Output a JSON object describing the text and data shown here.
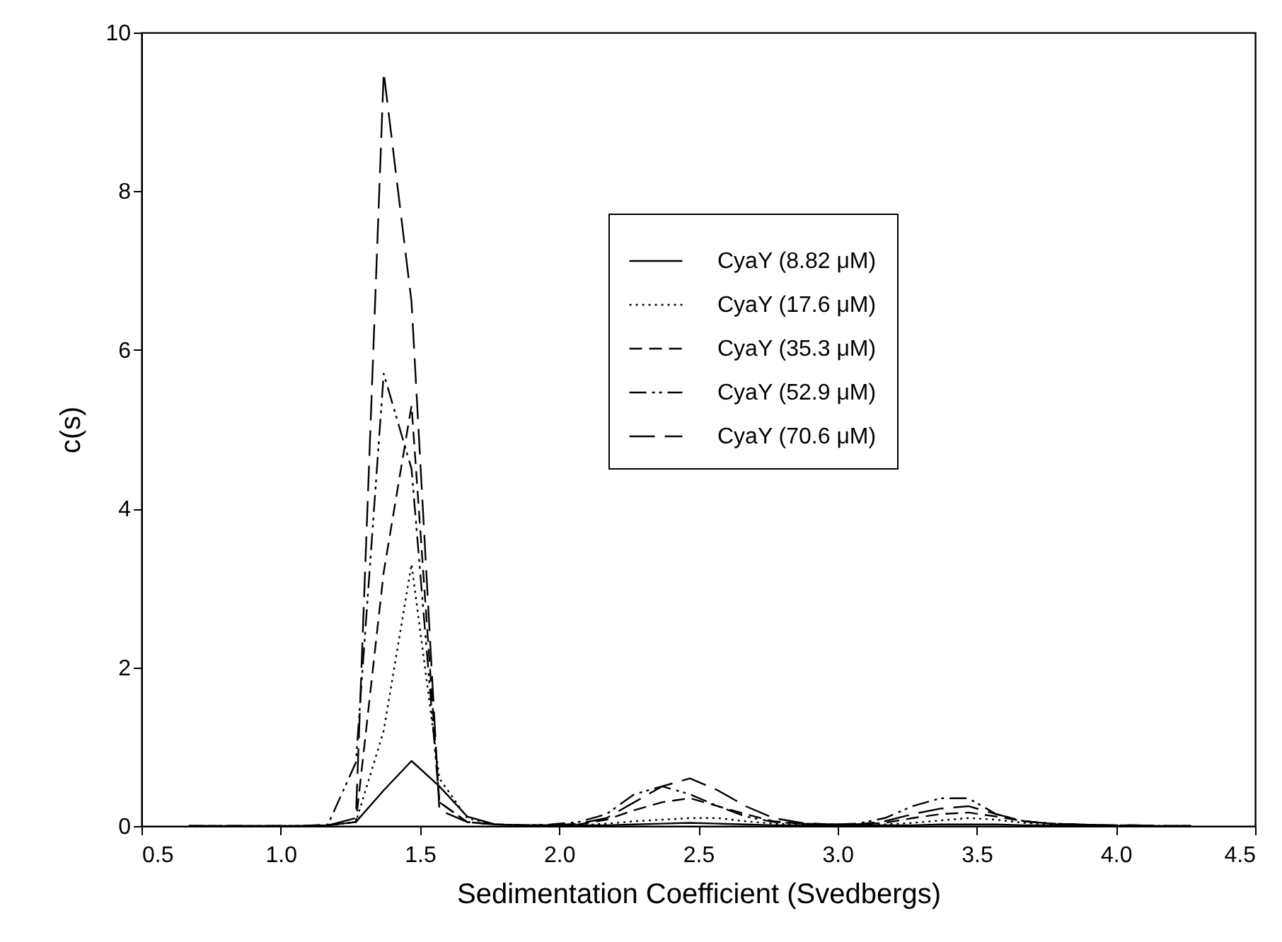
{
  "chart_data": {
    "type": "line",
    "xlabel": "Sedimentation Coefficient (Svedbergs)",
    "ylabel": "c(s)",
    "xlim": [
      0.5,
      4.5
    ],
    "xticks": [
      {
        "value": 0.5,
        "label": "0.5"
      },
      {
        "value": 1,
        "label": "1.0"
      },
      {
        "value": 1.5,
        "label": "1.5"
      },
      {
        "value": 2,
        "label": "2.0"
      },
      {
        "value": 2.5,
        "label": "2.5"
      },
      {
        "value": 3,
        "label": "3.0"
      },
      {
        "value": 3.5,
        "label": "3.5"
      },
      {
        "value": 4,
        "label": "4.0"
      },
      {
        "value": 4.5,
        "label": "4.5"
      }
    ],
    "ylim": [
      0,
      10
    ],
    "yticks": [
      0,
      2,
      4,
      6,
      8,
      10
    ],
    "legend": "top right",
    "x": [
      0.67,
      0.77,
      0.87,
      0.97,
      1.07,
      1.17,
      1.27,
      1.37,
      1.47,
      1.57,
      1.67,
      1.77,
      1.87,
      1.97,
      2.07,
      2.17,
      2.27,
      2.37,
      2.47,
      2.57,
      2.67,
      2.77,
      2.87,
      2.97,
      3.07,
      3.17,
      3.27,
      3.37,
      3.47,
      3.57,
      3.67,
      3.77,
      3.87,
      3.97,
      4.07,
      4.17,
      4.27
    ],
    "series": [
      {
        "name": "CyaY (8.82 μM)",
        "color": "#000000",
        "line_style": "solid",
        "values": [
          0,
          0,
          0,
          0,
          0,
          0.01,
          0.05,
          0.45,
          0.82,
          0.5,
          0.12,
          0.02,
          0.01,
          0.01,
          0.01,
          0.01,
          0.02,
          0.03,
          0.04,
          0.03,
          0.02,
          0.01,
          0.01,
          0.01,
          0.01,
          0.01,
          0.01,
          0.02,
          0.02,
          0.02,
          0.01,
          0.01,
          0.01,
          0,
          0,
          0,
          0
        ]
      },
      {
        "name": "CyaY (17.6 μM)",
        "color": "#000000",
        "line_style": "dotted",
        "values": [
          0,
          0,
          0,
          0,
          0,
          0.01,
          0.05,
          1.2,
          3.3,
          0.6,
          0.1,
          0.02,
          0.01,
          0.01,
          0.01,
          0.03,
          0.06,
          0.08,
          0.1,
          0.1,
          0.06,
          0.03,
          0.02,
          0.01,
          0.01,
          0.02,
          0.04,
          0.07,
          0.1,
          0.08,
          0.04,
          0.02,
          0.01,
          0.01,
          0,
          0,
          0
        ]
      },
      {
        "name": "CyaY (35.3 μM)",
        "color": "#000000",
        "line_style": "dashed",
        "values": [
          0,
          0,
          0,
          0,
          0,
          0.01,
          0.05,
          3.2,
          5.3,
          0.3,
          0.05,
          0.02,
          0.01,
          0.01,
          0.02,
          0.08,
          0.2,
          0.3,
          0.35,
          0.25,
          0.15,
          0.06,
          0.03,
          0.02,
          0.02,
          0.04,
          0.1,
          0.15,
          0.17,
          0.12,
          0.06,
          0.03,
          0.02,
          0.01,
          0.01,
          0,
          0
        ]
      },
      {
        "name": "CyaY (52.9 μM)",
        "color": "#000000",
        "line_style": "dashdot",
        "values": [
          0,
          0,
          0,
          0,
          0,
          0.02,
          0.8,
          5.7,
          4.5,
          0.3,
          0.05,
          0.02,
          0.01,
          0.02,
          0.05,
          0.15,
          0.4,
          0.5,
          0.4,
          0.25,
          0.12,
          0.05,
          0.03,
          0.02,
          0.03,
          0.1,
          0.25,
          0.35,
          0.35,
          0.15,
          0.06,
          0.03,
          0.02,
          0.01,
          0.01,
          0,
          0
        ]
      },
      {
        "name": "CyaY (70.6 μM)",
        "color": "#000000",
        "line_style": "longdash",
        "values": [
          0,
          0,
          0,
          0,
          0,
          0.01,
          0.1,
          9.5,
          6.6,
          0.2,
          0.05,
          0.02,
          0.01,
          0.01,
          0.03,
          0.1,
          0.3,
          0.5,
          0.6,
          0.45,
          0.25,
          0.1,
          0.04,
          0.02,
          0.02,
          0.06,
          0.15,
          0.22,
          0.25,
          0.15,
          0.06,
          0.03,
          0.02,
          0.01,
          0.01,
          0,
          0
        ]
      }
    ]
  }
}
